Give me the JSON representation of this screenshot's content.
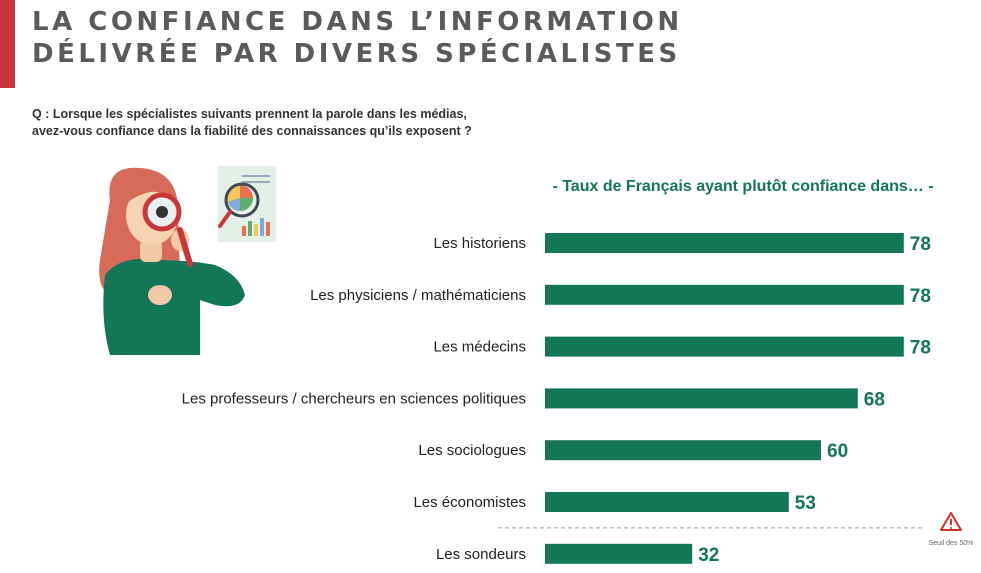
{
  "title_line1": "LA CONFIANCE DANS L’INFORMATION",
  "title_line2": "DÉLIVRÉE PAR DIVERS SPÉCIALISTES",
  "question_line1": "Q : Lorsque les spécialistes suivants prennent la parole dans les médias,",
  "question_line2": "avez-vous confiance dans la fiabilité des connaissances qu’ils exposent ?",
  "colors": {
    "accent": "#c8363a",
    "bar": "#137757",
    "title": "#5a5a5a",
    "warning": "#d32f2f"
  },
  "chart_data": {
    "type": "bar",
    "orientation": "horizontal",
    "subtitle": "- Taux de Français ayant plutôt confiance dans… -",
    "categories": [
      "Les historiens",
      "Les physiciens / mathématiciens",
      "Les médecins",
      "Les professeurs / chercheurs en sciences politiques",
      "Les sociologues",
      "Les économistes",
      "Les sondeurs"
    ],
    "values": [
      78,
      78,
      78,
      68,
      60,
      53,
      32
    ],
    "xlim": [
      0,
      100
    ],
    "reference_line": {
      "value_label": "Seuil des 50%",
      "icon": "warning-triangle-icon"
    },
    "grid": false
  }
}
